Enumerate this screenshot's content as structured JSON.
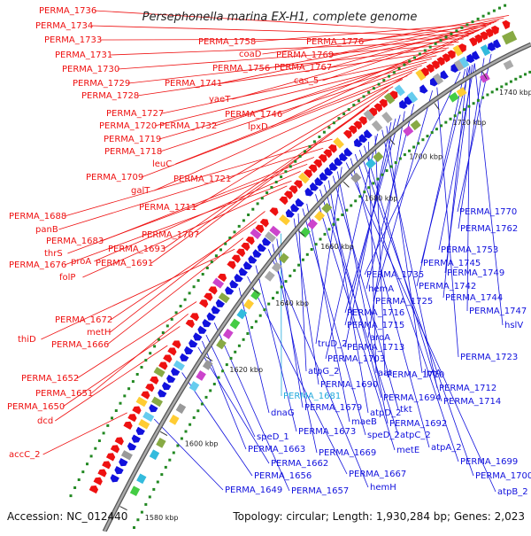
{
  "title": "Persephonella marina EX-H1, complete genome",
  "accession": "Accession: NC_012440",
  "summary": "Topology: circular; Length: 1,930,284 bp; Genes: 2,023",
  "colors": {
    "forward": "#ee1111",
    "reverse": "#1111dd",
    "highlight": "#22aadd",
    "backbone": "#888888"
  },
  "kbp_ticks": [
    "1580 kbp",
    "1600 kbp",
    "1620 kbp",
    "1640 kbp",
    "1660 kbp",
    "1680 kbp",
    "1700 kbp",
    "1720 kbp",
    "1740 kbp"
  ],
  "forward_labels": [
    "PERMA_1736",
    "PERMA_1734",
    "PERMA_1733",
    "PERMA_1731",
    "PERMA_1730",
    "PERMA_1729",
    "PERMA_1728",
    "PERMA_1741",
    "yaeT",
    "PERMA_1727",
    "PERMA_1720",
    "PERMA_1732",
    "PERMA_1719",
    "PERMA_1718",
    "leuC",
    "PERMA_1709",
    "galT",
    "PERMA_1721",
    "PERMA_1711",
    "PERMA_1688",
    "panB",
    "PERMA_1683",
    "PERMA_1707",
    "thrS",
    "PERMA_1693",
    "proA",
    "PERMA_1676",
    "PERMA_1691",
    "folP",
    "PERMA_1672",
    "metH",
    "thiD",
    "PERMA_1666",
    "PERMA_1652",
    "PERMA_1651",
    "PERMA_1650",
    "dcd",
    "accC_2",
    "PERMA_1758",
    "coaD",
    "PERMA_1756",
    "PERMA_1776",
    "PERMA_1769",
    "PERMA_1767",
    "cas_5",
    "PERMA_1746",
    "lpxD"
  ],
  "reverse_labels": [
    "PERMA_1770",
    "PERMA_1762",
    "PERMA_1753",
    "PERMA_1745",
    "PERMA_1749",
    "PERMA_1735",
    "PERMA_1742",
    "hemA",
    "PERMA_1744",
    "PERMA_1725",
    "PERMA_1747",
    "PERMA_1716",
    "hslV",
    "PERMA_1715",
    "aroA",
    "truD_2",
    "PERMA_1713",
    "PERMA_1723",
    "PERMA_1703",
    "aat",
    "lptA",
    "atpG_2",
    "PERMA_1710",
    "PERMA_1712",
    "PERMA_1690",
    "PERMA_1681",
    "PERMA_1694",
    "PERMA_1714",
    "dnaG",
    "PERMA_1679",
    "atpD_2",
    "tkt",
    "maeB",
    "PERMA_1692",
    "PERMA_1673",
    "speD_2",
    "atpC_2",
    "speD_1",
    "PERMA_1663",
    "PERMA_1669",
    "metE",
    "atpA_2",
    "PERMA_1662",
    "PERMA_1699",
    "PERMA_1656",
    "PERMA_1667",
    "PERMA_1700",
    "hemH",
    "PERMA_1649",
    "PERMA_1657",
    "atpB_2"
  ]
}
